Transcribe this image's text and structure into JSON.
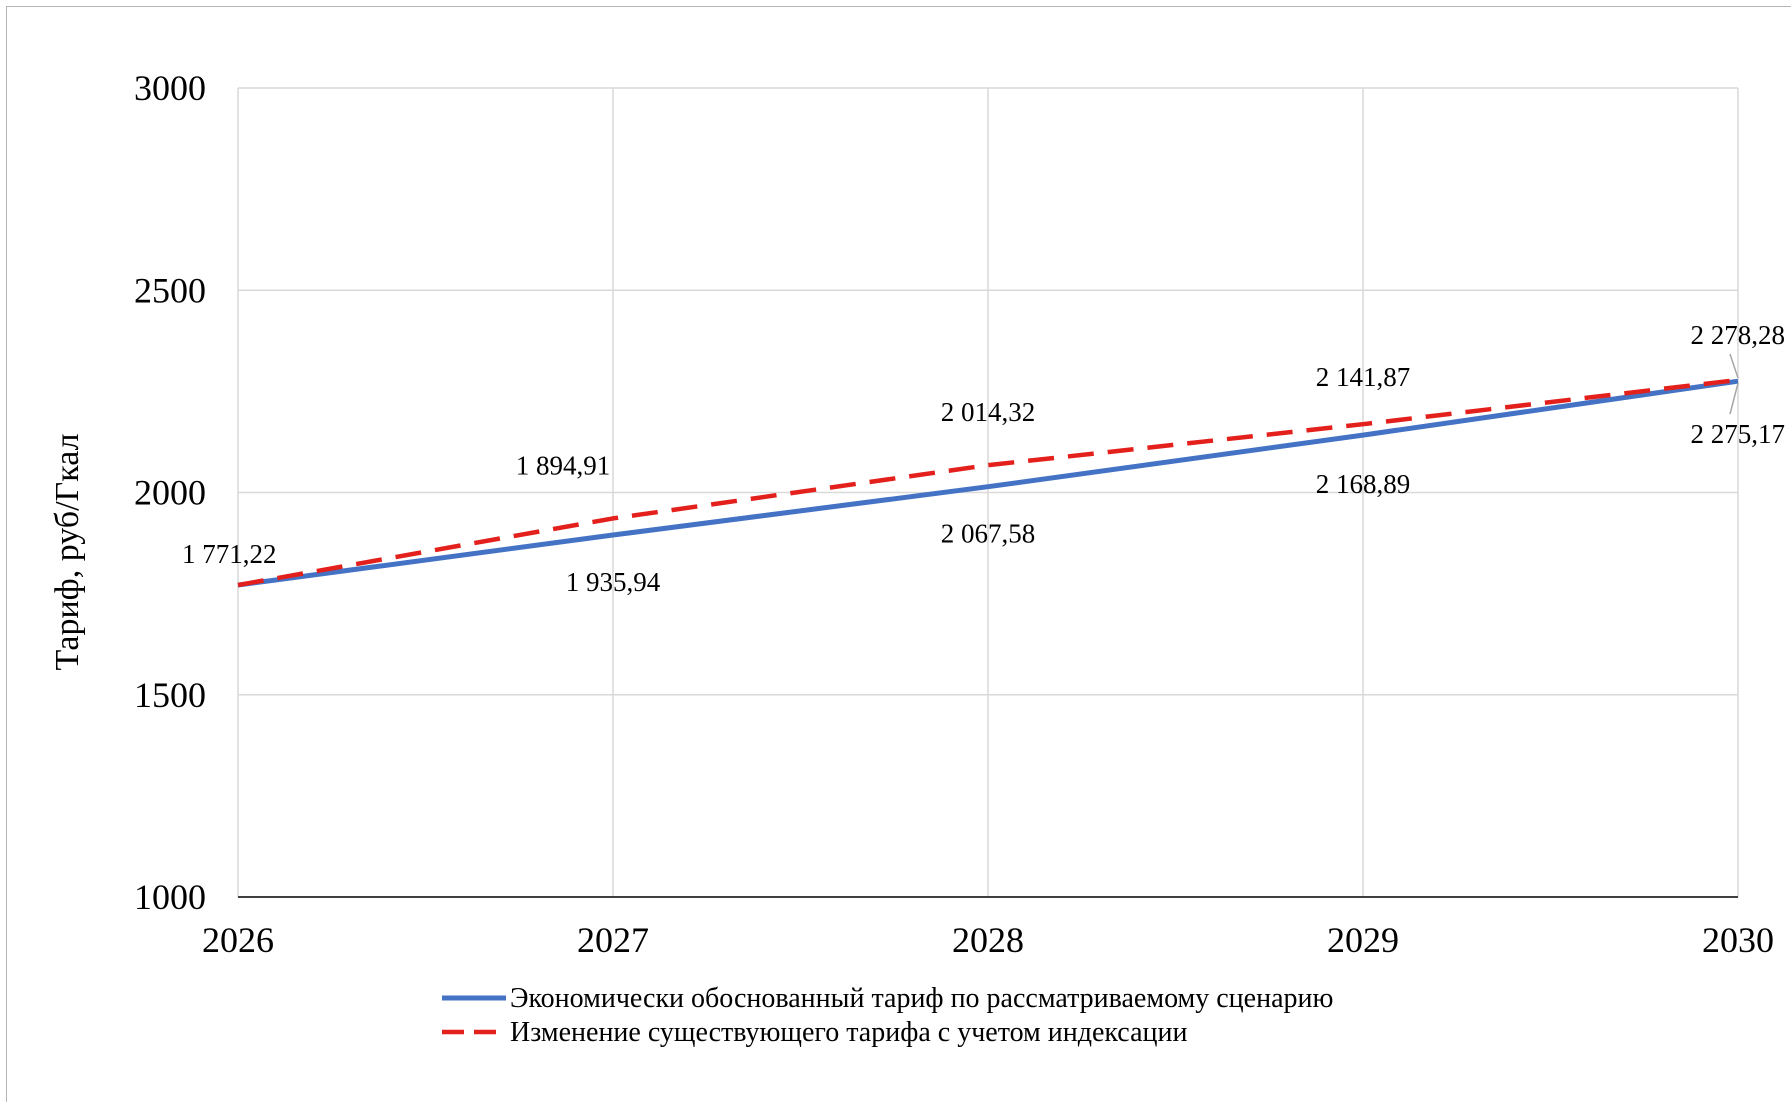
{
  "chart_data": {
    "type": "line",
    "title": "",
    "xlabel": "",
    "ylabel": "Тариф, руб/Гкал",
    "x": [
      "2026",
      "2027",
      "2028",
      "2029",
      "2030"
    ],
    "ylim": [
      1000,
      3000
    ],
    "yticks": [
      "1000",
      "1500",
      "2000",
      "2500",
      "3000"
    ],
    "grid": true,
    "legend_position": "bottom",
    "series": [
      {
        "name": "Экономически обоснованный тариф по рассматриваемому сценарию",
        "values": [
          1771.22,
          1894.91,
          2014.32,
          2141.87,
          2275.17
        ],
        "labels": [
          "1 771,22",
          "1 894,91",
          "2 014,32",
          "2 141,87",
          "2 275,17"
        ],
        "color": "#4472c4",
        "style": "solid"
      },
      {
        "name": "Изменение существующего тарифа с учетом индексации",
        "values": [
          1771.22,
          1935.94,
          2067.58,
          2168.89,
          2278.28
        ],
        "labels": [
          "",
          "1 935,94",
          "2 067,58",
          "2 168,89",
          "2 278,28"
        ],
        "color": "#e3201b",
        "style": "dashed"
      }
    ]
  }
}
